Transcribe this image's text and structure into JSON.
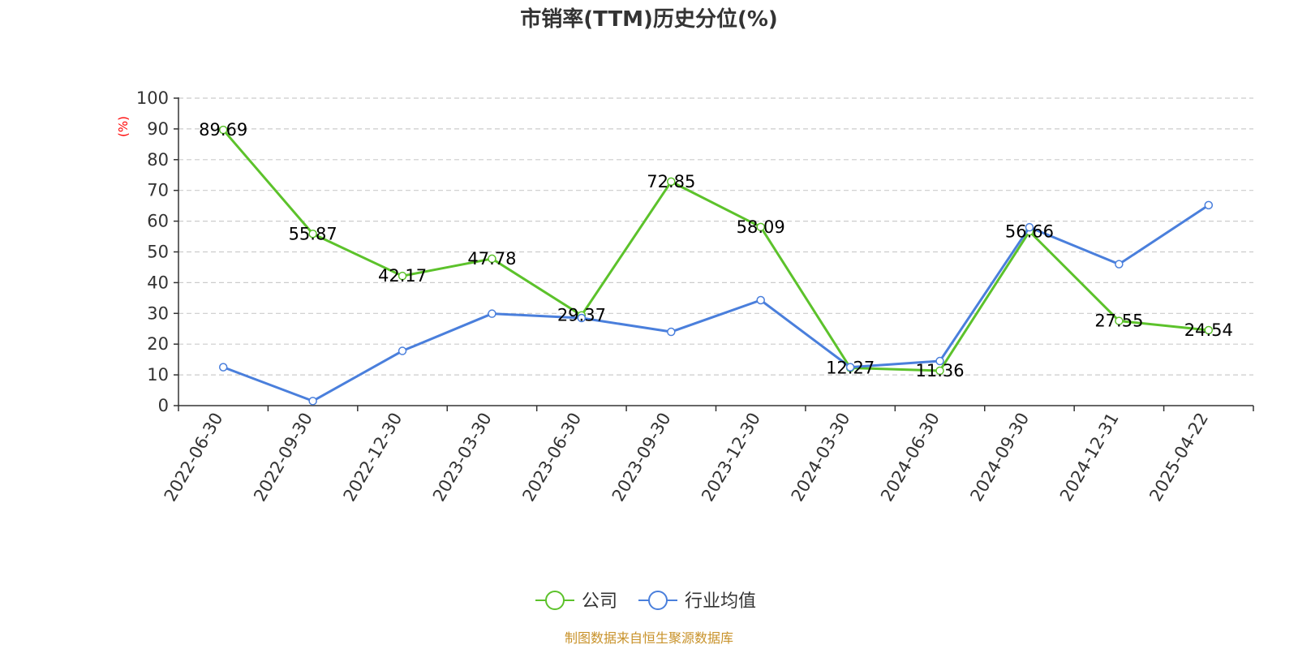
{
  "chart_data": {
    "type": "line",
    "title": "市销率(TTM)历史分位(%)",
    "ylabel": "(%)",
    "ylim": [
      0,
      100
    ],
    "yticks": [
      0,
      10,
      20,
      30,
      40,
      50,
      60,
      70,
      80,
      90,
      100
    ],
    "grid": true,
    "legend_position": "bottom",
    "categories": [
      "2022-06-30",
      "2022-09-30",
      "2022-12-30",
      "2023-03-30",
      "2023-06-30",
      "2023-09-30",
      "2023-12-30",
      "2024-03-30",
      "2024-06-30",
      "2024-09-30",
      "2024-12-31",
      "2025-04-22"
    ],
    "series": [
      {
        "name": "公司",
        "color": "#5cc22b",
        "values": [
          89.69,
          55.87,
          42.17,
          47.78,
          29.37,
          72.85,
          58.09,
          12.27,
          11.36,
          56.66,
          27.55,
          24.54
        ],
        "labels": [
          "89.69",
          "55.87",
          "42.17",
          "47.78",
          "29.37",
          "72.85",
          "58.09",
          "12.27",
          "11.36",
          "56.66",
          "27.55",
          "24.54"
        ]
      },
      {
        "name": "行业均值",
        "color": "#4a7fdc",
        "values": [
          12.5,
          1.5,
          17.8,
          29.9,
          28.5,
          24.0,
          34.3,
          12.5,
          14.5,
          58.0,
          46.0,
          65.2
        ]
      }
    ],
    "source": "制图数据来自恒生聚源数据库"
  },
  "colors": {
    "title": "#333333",
    "axis": "#333333",
    "grid": "#cccccc",
    "ylabel": "#ff0000",
    "source": "#c8922a"
  }
}
